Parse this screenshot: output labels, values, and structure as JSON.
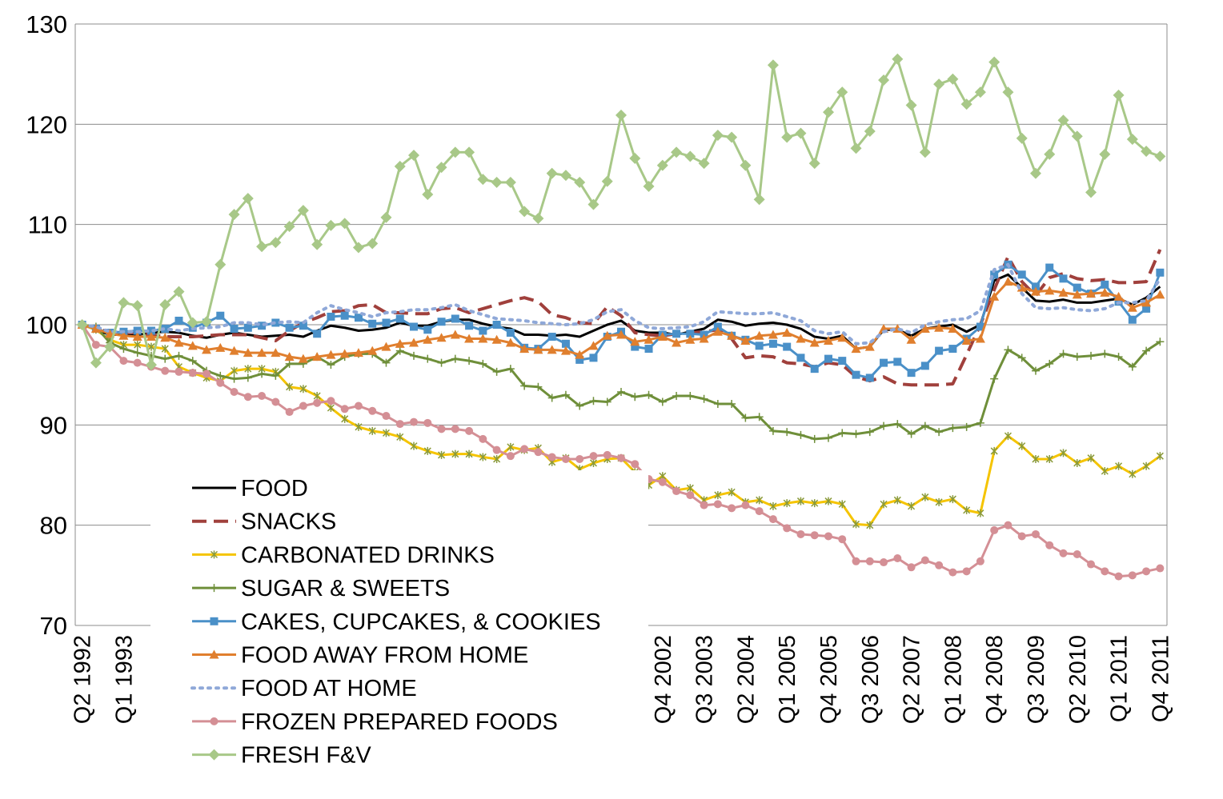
{
  "chart_data": {
    "type": "line",
    "categories": [
      "Q2 1992",
      null,
      null,
      "Q1 1993",
      null,
      null,
      null,
      null,
      null,
      null,
      null,
      null,
      null,
      null,
      null,
      null,
      null,
      null,
      null,
      null,
      null,
      null,
      null,
      null,
      null,
      null,
      null,
      null,
      null,
      null,
      null,
      null,
      null,
      null,
      null,
      null,
      null,
      null,
      null,
      null,
      null,
      null,
      "Q4 2002",
      null,
      null,
      "Q3 2003",
      null,
      null,
      "Q2 2004",
      null,
      null,
      "Q1 2005",
      null,
      null,
      "Q4 2005",
      null,
      null,
      "Q3 2006",
      null,
      null,
      "Q2 2007",
      null,
      null,
      "Q1 2008",
      null,
      null,
      "Q4 2008",
      null,
      null,
      "Q3 2009",
      null,
      null,
      "Q2 2010",
      null,
      null,
      "Q1 2011",
      null,
      null,
      "Q4 2011"
    ],
    "ylim": [
      70,
      130
    ],
    "yticks": [
      70,
      80,
      90,
      100,
      110,
      120,
      130
    ],
    "grid": true,
    "series": [
      {
        "name": "FOOD",
        "color": "#000000",
        "dash": "solid",
        "marker": "none",
        "values": [
          100,
          99.5,
          99,
          99,
          99,
          99.2,
          99.3,
          99.2,
          98.9,
          98.7,
          99,
          99.2,
          99,
          98.8,
          98.9,
          99,
          98.8,
          99.4,
          99.9,
          99.7,
          99.4,
          99.5,
          99.7,
          100.2,
          99.9,
          99.9,
          100.3,
          100.5,
          100.5,
          100.1,
          99.8,
          99.6,
          99,
          99,
          98.9,
          99,
          98.8,
          99.4,
          100,
          100.4,
          99.4,
          99.2,
          99.2,
          99,
          99.3,
          99.6,
          100.5,
          100.3,
          99.9,
          100.1,
          100.2,
          100,
          99.6,
          98.8,
          98.6,
          98.9,
          97.6,
          97.8,
          99.5,
          99.5,
          98.9,
          99.6,
          99.8,
          100,
          99.3,
          100,
          104.4,
          105,
          103.7,
          102.4,
          102.3,
          102.5,
          102.2,
          102.2,
          102.4,
          102.6,
          102,
          102.7,
          103.8
        ]
      },
      {
        "name": "SNACKS",
        "color": "#a0403c",
        "dash": "dashed",
        "marker": "none",
        "values": [
          100,
          99.6,
          99.3,
          99.2,
          99.2,
          99,
          98.8,
          98.8,
          98.8,
          98.9,
          99,
          99,
          99,
          98.7,
          98.4,
          99.4,
          100.2,
          100.7,
          101.3,
          101.4,
          101.9,
          102,
          101.2,
          101.2,
          101.1,
          101.1,
          101.6,
          101.7,
          101.2,
          101.6,
          102,
          102.4,
          102.7,
          102.3,
          101,
          100.7,
          100.2,
          100.1,
          101.8,
          100.9,
          99.2,
          99,
          98.9,
          99.1,
          99.2,
          99.3,
          99.5,
          98.6,
          96.7,
          96.9,
          96.8,
          96.2,
          96.1,
          95.8,
          96.2,
          96,
          94.8,
          94.4,
          94.8,
          94.1,
          94,
          94,
          94,
          94.1,
          97,
          100,
          103.5,
          106.8,
          104.3,
          102.9,
          104.7,
          105.1,
          104.6,
          104.4,
          104.5,
          104.2,
          104.2,
          104.3,
          107.5
        ]
      },
      {
        "name": "CARBONATED DRINKS",
        "color": "#f5c400",
        "dash": "solid",
        "marker": "asterisk",
        "values": [
          100,
          99.5,
          98.5,
          98,
          98,
          97.8,
          97.6,
          95.8,
          95.2,
          94.7,
          94.4,
          95.4,
          95.6,
          95.6,
          95.3,
          93.8,
          93.6,
          92.9,
          91.7,
          90.6,
          89.8,
          89.4,
          89.2,
          88.8,
          87.9,
          87.4,
          87,
          87.1,
          87.1,
          86.8,
          86.6,
          87.8,
          87.5,
          87.7,
          86.3,
          86.7,
          85.6,
          86.2,
          86.6,
          86.7,
          85.3,
          84,
          84.9,
          83.5,
          83.7,
          82.5,
          83,
          83.3,
          82.3,
          82.5,
          81.9,
          82.2,
          82.4,
          82.2,
          82.4,
          82.1,
          80.1,
          80,
          82.1,
          82.5,
          81.9,
          82.8,
          82.3,
          82.6,
          81.5,
          81.2,
          87.4,
          88.9,
          87.9,
          86.6,
          86.6,
          87.2,
          86.2,
          86.7,
          85.4,
          85.9,
          85.1,
          85.9,
          86.9
        ]
      },
      {
        "name": "SUGAR & SWEETS",
        "color": "#6f8f3a",
        "dash": "solid",
        "marker": "plus",
        "values": [
          100,
          99.8,
          98.2,
          97.6,
          97.2,
          96.9,
          96.6,
          96.9,
          96.4,
          95.4,
          94.9,
          94.6,
          94.7,
          95.1,
          94.9,
          96.1,
          96.1,
          96.8,
          96,
          96.8,
          97.1,
          97.1,
          96.2,
          97.4,
          96.9,
          96.6,
          96.2,
          96.6,
          96.4,
          96.1,
          95.3,
          95.6,
          93.9,
          93.8,
          92.7,
          93,
          91.9,
          92.4,
          92.3,
          93.3,
          92.8,
          93,
          92.3,
          92.9,
          92.9,
          92.6,
          92.1,
          92.1,
          90.7,
          90.8,
          89.4,
          89.3,
          89,
          88.6,
          88.7,
          89.2,
          89.1,
          89.3,
          89.9,
          90.1,
          89.1,
          89.9,
          89.3,
          89.7,
          89.8,
          90.2,
          94.6,
          97.5,
          96.7,
          95.4,
          96.1,
          97.1,
          96.8,
          96.9,
          97.1,
          96.8,
          95.8,
          97.4,
          98.3
        ]
      },
      {
        "name": "CAKES, CUPCAKES, & COOKIES",
        "color": "#4a90c8",
        "dash": "solid",
        "marker": "square",
        "values": [
          100,
          99.6,
          99.2,
          99.3,
          99.4,
          99.4,
          99.6,
          100.4,
          99.7,
          100.2,
          100.9,
          99.6,
          99.7,
          99.9,
          100.2,
          99.7,
          99.9,
          99.1,
          100.8,
          100.9,
          100.7,
          100.1,
          100.2,
          100.6,
          99.8,
          99.5,
          100.3,
          100.6,
          99.9,
          99.4,
          100,
          99.2,
          97.7,
          97.6,
          98.8,
          98.1,
          96.5,
          96.7,
          98.8,
          99.3,
          97.8,
          97.6,
          99,
          99.1,
          99.1,
          99,
          99.8,
          98.9,
          98.5,
          97.9,
          98.1,
          97.8,
          96.7,
          95.6,
          96.6,
          96.4,
          95,
          94.7,
          96.2,
          96.3,
          95.2,
          95.9,
          97.4,
          97.6,
          98.6,
          99.8,
          105,
          106,
          105,
          103.8,
          105.7,
          104.6,
          103.7,
          103.1,
          104,
          102.3,
          100.5,
          101.6,
          105.2
        ]
      },
      {
        "name": "FOOD AWAY FROM HOME",
        "color": "#e07f2e",
        "dash": "solid",
        "marker": "triangle",
        "values": [
          100,
          99.6,
          99.1,
          98.9,
          98.8,
          98.8,
          98.7,
          98.2,
          97.9,
          97.5,
          97.7,
          97.4,
          97.2,
          97.2,
          97.2,
          96.8,
          96.6,
          96.8,
          97,
          97.1,
          97.2,
          97.4,
          97.8,
          98.1,
          98.2,
          98.5,
          98.7,
          99,
          98.6,
          98.6,
          98.5,
          98.2,
          97.6,
          97.5,
          97.5,
          97.4,
          97,
          97.9,
          98.9,
          99,
          98.3,
          98.5,
          98.8,
          98.2,
          98.5,
          98.6,
          99.3,
          98.9,
          98.4,
          98.9,
          99,
          99.2,
          98.6,
          98.2,
          98.4,
          98.7,
          97.6,
          97.8,
          99.6,
          99.6,
          98.5,
          99.6,
          99.7,
          99.6,
          98.4,
          98.6,
          102.8,
          104.3,
          103.7,
          103.3,
          103.4,
          103.2,
          103,
          103.1,
          103.2,
          102.8,
          101.7,
          102.2,
          103
        ]
      },
      {
        "name": "FOOD AT HOME",
        "color": "#8fa8d8",
        "dash": "dotted",
        "marker": "none",
        "values": [
          100,
          99.8,
          99.3,
          99.3,
          99.3,
          99.4,
          99.6,
          99.4,
          99.6,
          99.7,
          99.8,
          100.2,
          100.2,
          100,
          100.2,
          100.3,
          100.2,
          101.2,
          101.9,
          101.5,
          101.2,
          100.8,
          101.2,
          101.3,
          101.5,
          101.5,
          101.7,
          102,
          101.4,
          101,
          100.6,
          100.5,
          100.4,
          100.2,
          100.1,
          100,
          100.1,
          100.5,
          101.3,
          101.5,
          100.4,
          99.7,
          99.6,
          99.7,
          99.8,
          100.3,
          101.3,
          101.2,
          101.1,
          101.1,
          101.2,
          100.8,
          100.4,
          99.4,
          99.1,
          99.3,
          98.1,
          98.2,
          99.3,
          99.6,
          99.2,
          100,
          100.3,
          100.5,
          100.6,
          101.4,
          105.5,
          106,
          103.1,
          101.7,
          101.6,
          101.7,
          101.5,
          101.4,
          101.6,
          102.2,
          102.2,
          102.4,
          104.6
        ]
      },
      {
        "name": "FROZEN PREPARED FOODS",
        "color": "#d48f95",
        "dash": "solid",
        "marker": "circle",
        "values": [
          100,
          98,
          97.8,
          96.4,
          96.2,
          95.8,
          95.4,
          95.3,
          95.2,
          95.1,
          94.2,
          93.3,
          92.8,
          92.9,
          92.3,
          91.3,
          91.9,
          92.2,
          92.4,
          91.6,
          91.9,
          91.4,
          90.9,
          90.1,
          90.3,
          90.2,
          89.6,
          89.6,
          89.4,
          88.6,
          87.5,
          86.9,
          87.6,
          87.3,
          86.8,
          86.6,
          86.6,
          86.9,
          87,
          86.7,
          86.1,
          84.6,
          84.3,
          83.4,
          83,
          82,
          82.1,
          81.7,
          82,
          81.4,
          80.6,
          79.7,
          79.1,
          79,
          78.9,
          78.6,
          76.4,
          76.4,
          76.3,
          76.7,
          75.8,
          76.5,
          76,
          75.3,
          75.4,
          76.4,
          79.5,
          80,
          78.9,
          79.1,
          78,
          77.2,
          77.1,
          76.1,
          75.4,
          74.9,
          75,
          75.4,
          75.7
        ]
      },
      {
        "name": "FRESH F&V",
        "color": "#a8c888",
        "dash": "solid",
        "marker": "diamond",
        "values": [
          100,
          96.2,
          97.8,
          102.2,
          101.9,
          96,
          102,
          103.3,
          100.2,
          100.3,
          106,
          111,
          112.6,
          107.8,
          108.2,
          109.8,
          111.4,
          108,
          109.9,
          110.1,
          107.7,
          108.1,
          110.7,
          115.8,
          116.9,
          113,
          115.7,
          117.2,
          117.2,
          114.5,
          114.2,
          114.2,
          111.3,
          110.6,
          115.1,
          114.9,
          114.2,
          112,
          114.3,
          120.9,
          116.6,
          113.8,
          115.9,
          117.2,
          116.8,
          116.1,
          118.9,
          118.7,
          115.9,
          112.5,
          125.9,
          118.7,
          119.1,
          116.1,
          121.2,
          123.2,
          117.6,
          119.3,
          124.4,
          126.5,
          121.9,
          117.2,
          124,
          124.5,
          122,
          123.2,
          126.2,
          123.2,
          118.6,
          115.1,
          117,
          120.4,
          118.8,
          113.2,
          117,
          122.9,
          118.5,
          117.3,
          116.8
        ]
      }
    ]
  }
}
